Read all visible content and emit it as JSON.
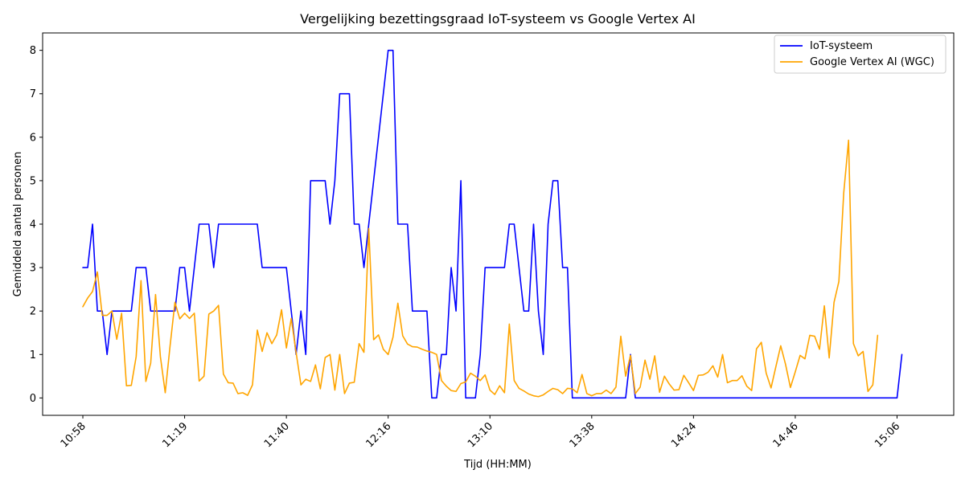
{
  "chart_data": {
    "type": "line",
    "title": "Vergelijking bezettingsgraad IoT-systeem vs Google Vertex AI",
    "xlabel": "Tijd (HH:MM)",
    "ylabel": "Gemiddeld aantal personen",
    "x_tick_labels": [
      "10:58",
      "11:19",
      "11:40",
      "12:16",
      "13:10",
      "13:38",
      "14:24",
      "14:46",
      "15:06"
    ],
    "x_tick_index": [
      0,
      21,
      42,
      63,
      84,
      105,
      126,
      147,
      168
    ],
    "yticks": [
      0,
      1,
      2,
      3,
      4,
      5,
      6,
      7,
      8
    ],
    "ylim": [
      -0.4,
      8.4
    ],
    "xlim": [
      -8.3,
      179.7
    ],
    "grid": false,
    "legend_position": "top-right",
    "series": [
      {
        "name": "IoT-systeem",
        "color": "#0000ff",
        "values": [
          3,
          3,
          4,
          2,
          2,
          1,
          2,
          2,
          2,
          2,
          2,
          3,
          3,
          3,
          2,
          2,
          2,
          2,
          2,
          2,
          3,
          3,
          2,
          3,
          4,
          4,
          4,
          3,
          4,
          4,
          4,
          4,
          4,
          4,
          4,
          4,
          4,
          3,
          3,
          3,
          3,
          3,
          3,
          2,
          1,
          2,
          1,
          5,
          5,
          5,
          5,
          4,
          5,
          7,
          7,
          7,
          4,
          4,
          3,
          4,
          5,
          6,
          7,
          8,
          8,
          4,
          4,
          4,
          2,
          2,
          2,
          2,
          0,
          0,
          1,
          1,
          3,
          2,
          5,
          0,
          0,
          0,
          1,
          3,
          3,
          3,
          3,
          3,
          4,
          4,
          3,
          2,
          2,
          4,
          2,
          1,
          4,
          5,
          5,
          3,
          3,
          0,
          0,
          0,
          0,
          0,
          0,
          0,
          0,
          0,
          0,
          0,
          0,
          1,
          0,
          0,
          0,
          0,
          0,
          0,
          0,
          0,
          0,
          0,
          0,
          0,
          0,
          0,
          0,
          0,
          0,
          0,
          0,
          0,
          0,
          0,
          0,
          0,
          0,
          0,
          0,
          0,
          0,
          0,
          0,
          0,
          0,
          0,
          0,
          0,
          0,
          0,
          0,
          0,
          0,
          0,
          0,
          0,
          0,
          0,
          0,
          0,
          0,
          0,
          0,
          0,
          0,
          0,
          0,
          1
        ]
      },
      {
        "name": "Google Vertex AI (WGC)",
        "color": "#ffa500",
        "values": [
          2.1,
          2.3,
          2.45,
          2.9,
          1.9,
          1.9,
          2.0,
          1.35,
          1.95,
          0.28,
          0.29,
          0.95,
          2.7,
          0.38,
          0.8,
          2.38,
          0.95,
          0.12,
          1.2,
          2.2,
          1.82,
          1.95,
          1.83,
          1.95,
          0.39,
          0.5,
          1.93,
          2.0,
          2.13,
          0.55,
          0.35,
          0.34,
          0.1,
          0.12,
          0.06,
          0.3,
          1.56,
          1.07,
          1.5,
          1.25,
          1.45,
          2.03,
          1.15,
          1.83,
          1.05,
          0.3,
          0.43,
          0.38,
          0.76,
          0.21,
          0.93,
          1.0,
          0.18,
          1.0,
          0.1,
          0.34,
          0.36,
          1.25,
          1.05,
          3.9,
          1.34,
          1.45,
          1.12,
          1.0,
          1.4,
          2.18,
          1.43,
          1.24,
          1.18,
          1.17,
          1.12,
          1.08,
          1.05,
          1.0,
          0.4,
          0.27,
          0.17,
          0.15,
          0.33,
          0.37,
          0.57,
          0.5,
          0.4,
          0.53,
          0.18,
          0.08,
          0.28,
          0.12,
          1.7,
          0.4,
          0.22,
          0.16,
          0.09,
          0.05,
          0.03,
          0.07,
          0.15,
          0.22,
          0.19,
          0.1,
          0.22,
          0.21,
          0.12,
          0.54,
          0.1,
          0.05,
          0.1,
          0.1,
          0.18,
          0.1,
          0.25,
          1.42,
          0.5,
          0.98,
          0.1,
          0.25,
          0.87,
          0.43,
          0.97,
          0.13,
          0.5,
          0.32,
          0.18,
          0.19,
          0.52,
          0.35,
          0.17,
          0.52,
          0.53,
          0.59,
          0.74,
          0.48,
          1.0,
          0.35,
          0.4,
          0.4,
          0.51,
          0.27,
          0.17,
          1.13,
          1.28,
          0.57,
          0.23,
          0.72,
          1.2,
          0.77,
          0.24,
          0.6,
          0.98,
          0.9,
          1.44,
          1.42,
          1.12,
          2.12,
          0.92,
          2.2,
          2.68,
          4.72,
          5.93,
          1.25,
          0.97,
          1.07,
          0.15,
          0.3,
          1.44
        ]
      }
    ]
  }
}
